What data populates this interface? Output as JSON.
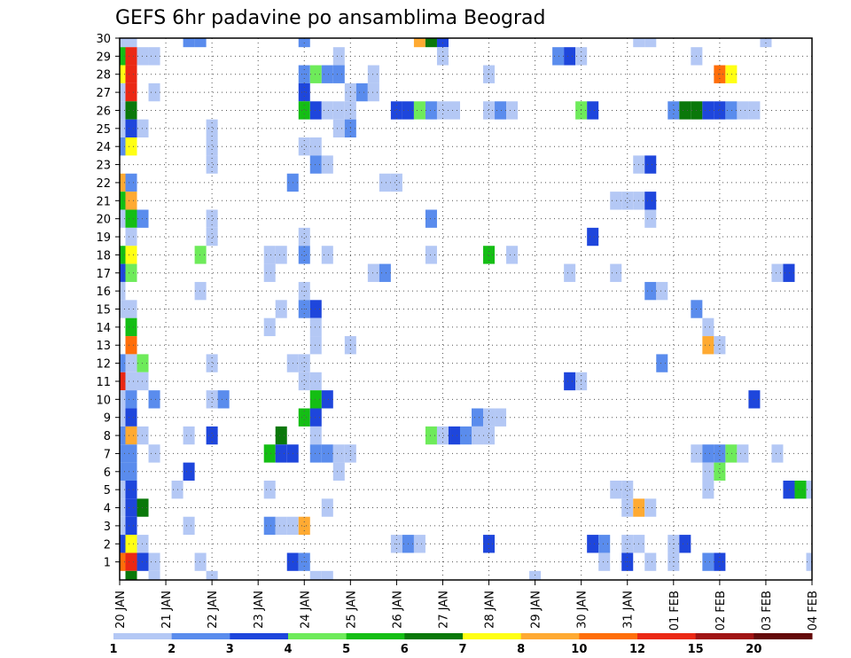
{
  "chart_data": {
    "type": "heatmap",
    "title": "GEFS 6hr padavine po ansamblima Beograd",
    "xlabel": "",
    "ylabel": "",
    "x_tick_labels": [
      "20 JAN",
      "21 JAN",
      "22 JAN",
      "23 JAN",
      "24 JAN",
      "25 JAN",
      "26 JAN",
      "27 JAN",
      "28 JAN",
      "29 JAN",
      "30 JAN",
      "31 JAN",
      "01 FEB",
      "02 FEB",
      "03 FEB",
      "04 FEB"
    ],
    "y_tick_labels": [
      "1",
      "2",
      "3",
      "4",
      "5",
      "6",
      "7",
      "8",
      "9",
      "10",
      "11",
      "12",
      "13",
      "14",
      "15",
      "16",
      "17",
      "18",
      "19",
      "20",
      "21",
      "22",
      "23",
      "24",
      "25",
      "26",
      "27",
      "28",
      "29",
      "30"
    ],
    "time_steps_per_day": 4,
    "x_range_steps": [
      0,
      60
    ],
    "y_range_members": [
      0,
      30
    ],
    "grid": "dotted",
    "colorbar": {
      "placement": "bottom",
      "boundary_labels": [
        "1",
        "2",
        "3",
        "4",
        "5",
        "6",
        "7",
        "8",
        "10",
        "12",
        "15",
        "20"
      ],
      "colors": [
        "#b4c8f5",
        "#5a8ced",
        "#1e46dc",
        "#6eeb5a",
        "#14be14",
        "#0a780a",
        "#ffff14",
        "#ffaa32",
        "#ff6e0a",
        "#eb2814",
        "#a01414",
        "#640a0a"
      ]
    },
    "cells_legend": "[member, step, colorIndex] where step counts 6-hour intervals from 20 JAN 00 and colorIndex refers to colorbar.colors",
    "cells": [
      [
        30,
        0,
        0
      ],
      [
        30,
        1,
        0
      ],
      [
        30,
        6,
        1
      ],
      [
        30,
        7,
        1
      ],
      [
        30,
        16,
        1
      ],
      [
        30,
        26,
        7
      ],
      [
        30,
        27,
        5
      ],
      [
        30,
        28,
        2
      ],
      [
        30,
        45,
        0
      ],
      [
        30,
        46,
        0
      ],
      [
        30,
        56,
        0
      ],
      [
        29,
        0,
        4
      ],
      [
        29,
        1,
        9
      ],
      [
        29,
        2,
        0
      ],
      [
        29,
        3,
        0
      ],
      [
        29,
        19,
        0
      ],
      [
        29,
        28,
        0
      ],
      [
        29,
        38,
        1
      ],
      [
        29,
        39,
        2
      ],
      [
        29,
        40,
        0
      ],
      [
        29,
        50,
        0
      ],
      [
        28,
        0,
        6
      ],
      [
        28,
        1,
        9
      ],
      [
        28,
        16,
        1
      ],
      [
        28,
        17,
        3
      ],
      [
        28,
        18,
        1
      ],
      [
        28,
        19,
        1
      ],
      [
        28,
        22,
        0
      ],
      [
        28,
        32,
        0
      ],
      [
        28,
        52,
        8
      ],
      [
        28,
        53,
        6
      ],
      [
        27,
        0,
        0
      ],
      [
        27,
        1,
        9
      ],
      [
        27,
        3,
        0
      ],
      [
        27,
        16,
        2
      ],
      [
        27,
        20,
        0
      ],
      [
        27,
        21,
        1
      ],
      [
        27,
        22,
        0
      ],
      [
        26,
        0,
        0
      ],
      [
        26,
        1,
        5
      ],
      [
        26,
        16,
        4
      ],
      [
        26,
        17,
        2
      ],
      [
        26,
        18,
        0
      ],
      [
        26,
        19,
        0
      ],
      [
        26,
        20,
        0
      ],
      [
        26,
        24,
        2
      ],
      [
        26,
        25,
        2
      ],
      [
        26,
        26,
        3
      ],
      [
        26,
        27,
        1
      ],
      [
        26,
        28,
        0
      ],
      [
        26,
        29,
        0
      ],
      [
        26,
        32,
        0
      ],
      [
        26,
        33,
        1
      ],
      [
        26,
        34,
        0
      ],
      [
        26,
        40,
        3
      ],
      [
        26,
        41,
        2
      ],
      [
        26,
        48,
        1
      ],
      [
        26,
        49,
        5
      ],
      [
        26,
        50,
        5
      ],
      [
        26,
        51,
        2
      ],
      [
        26,
        52,
        2
      ],
      [
        26,
        53,
        1
      ],
      [
        26,
        54,
        0
      ],
      [
        26,
        55,
        0
      ],
      [
        25,
        0,
        0
      ],
      [
        25,
        1,
        2
      ],
      [
        25,
        2,
        0
      ],
      [
        25,
        8,
        0
      ],
      [
        25,
        19,
        0
      ],
      [
        25,
        20,
        1
      ],
      [
        24,
        0,
        1
      ],
      [
        24,
        1,
        6
      ],
      [
        24,
        8,
        0
      ],
      [
        24,
        16,
        0
      ],
      [
        24,
        17,
        0
      ],
      [
        23,
        8,
        0
      ],
      [
        23,
        17,
        1
      ],
      [
        23,
        18,
        0
      ],
      [
        23,
        45,
        0
      ],
      [
        23,
        46,
        2
      ],
      [
        22,
        0,
        7
      ],
      [
        22,
        1,
        1
      ],
      [
        22,
        15,
        1
      ],
      [
        22,
        23,
        0
      ],
      [
        22,
        24,
        0
      ],
      [
        21,
        0,
        4
      ],
      [
        21,
        1,
        7
      ],
      [
        21,
        43,
        0
      ],
      [
        21,
        44,
        0
      ],
      [
        21,
        45,
        0
      ],
      [
        21,
        46,
        2
      ],
      [
        20,
        0,
        0
      ],
      [
        20,
        1,
        4
      ],
      [
        20,
        2,
        1
      ],
      [
        20,
        8,
        0
      ],
      [
        20,
        27,
        1
      ],
      [
        20,
        46,
        0
      ],
      [
        19,
        1,
        0
      ],
      [
        19,
        8,
        0
      ],
      [
        19,
        16,
        0
      ],
      [
        19,
        41,
        2
      ],
      [
        18,
        0,
        4
      ],
      [
        18,
        1,
        6
      ],
      [
        18,
        7,
        3
      ],
      [
        18,
        13,
        0
      ],
      [
        18,
        14,
        0
      ],
      [
        18,
        16,
        1
      ],
      [
        18,
        18,
        0
      ],
      [
        18,
        27,
        0
      ],
      [
        18,
        32,
        4
      ],
      [
        18,
        34,
        0
      ],
      [
        17,
        0,
        2
      ],
      [
        17,
        1,
        3
      ],
      [
        17,
        13,
        0
      ],
      [
        17,
        22,
        0
      ],
      [
        17,
        23,
        1
      ],
      [
        17,
        39,
        0
      ],
      [
        17,
        43,
        0
      ],
      [
        17,
        57,
        0
      ],
      [
        17,
        58,
        2
      ],
      [
        16,
        0,
        0
      ],
      [
        16,
        7,
        0
      ],
      [
        16,
        16,
        0
      ],
      [
        16,
        46,
        1
      ],
      [
        16,
        47,
        0
      ],
      [
        15,
        0,
        0
      ],
      [
        15,
        1,
        0
      ],
      [
        15,
        14,
        0
      ],
      [
        15,
        16,
        1
      ],
      [
        15,
        17,
        2
      ],
      [
        15,
        50,
        1
      ],
      [
        14,
        1,
        4
      ],
      [
        14,
        13,
        0
      ],
      [
        14,
        17,
        0
      ],
      [
        14,
        51,
        0
      ],
      [
        13,
        1,
        8
      ],
      [
        13,
        17,
        0
      ],
      [
        13,
        20,
        0
      ],
      [
        13,
        51,
        7
      ],
      [
        13,
        52,
        0
      ],
      [
        12,
        0,
        1
      ],
      [
        12,
        1,
        0
      ],
      [
        12,
        2,
        3
      ],
      [
        12,
        8,
        0
      ],
      [
        12,
        15,
        0
      ],
      [
        12,
        16,
        0
      ],
      [
        12,
        47,
        1
      ],
      [
        11,
        0,
        9
      ],
      [
        11,
        1,
        0
      ],
      [
        11,
        2,
        0
      ],
      [
        11,
        16,
        0
      ],
      [
        11,
        17,
        0
      ],
      [
        11,
        39,
        2
      ],
      [
        11,
        40,
        0
      ],
      [
        10,
        0,
        0
      ],
      [
        10,
        1,
        1
      ],
      [
        10,
        3,
        1
      ],
      [
        10,
        8,
        0
      ],
      [
        10,
        9,
        1
      ],
      [
        10,
        17,
        4
      ],
      [
        10,
        18,
        2
      ],
      [
        10,
        55,
        2
      ],
      [
        9,
        0,
        0
      ],
      [
        9,
        1,
        2
      ],
      [
        9,
        16,
        4
      ],
      [
        9,
        17,
        2
      ],
      [
        9,
        31,
        1
      ],
      [
        9,
        32,
        0
      ],
      [
        9,
        33,
        0
      ],
      [
        8,
        0,
        1
      ],
      [
        8,
        1,
        7
      ],
      [
        8,
        2,
        0
      ],
      [
        8,
        6,
        0
      ],
      [
        8,
        8,
        2
      ],
      [
        8,
        14,
        5
      ],
      [
        8,
        17,
        0
      ],
      [
        8,
        27,
        3
      ],
      [
        8,
        28,
        0
      ],
      [
        8,
        29,
        2
      ],
      [
        8,
        30,
        1
      ],
      [
        8,
        31,
        0
      ],
      [
        8,
        32,
        0
      ],
      [
        7,
        0,
        1
      ],
      [
        7,
        1,
        1
      ],
      [
        7,
        3,
        0
      ],
      [
        7,
        13,
        4
      ],
      [
        7,
        14,
        2
      ],
      [
        7,
        15,
        2
      ],
      [
        7,
        17,
        1
      ],
      [
        7,
        18,
        1
      ],
      [
        7,
        19,
        0
      ],
      [
        7,
        20,
        0
      ],
      [
        7,
        50,
        0
      ],
      [
        7,
        51,
        1
      ],
      [
        7,
        52,
        1
      ],
      [
        7,
        53,
        3
      ],
      [
        7,
        54,
        0
      ],
      [
        7,
        57,
        0
      ],
      [
        6,
        0,
        1
      ],
      [
        6,
        1,
        1
      ],
      [
        6,
        6,
        2
      ],
      [
        6,
        19,
        0
      ],
      [
        6,
        51,
        0
      ],
      [
        6,
        52,
        3
      ],
      [
        5,
        0,
        0
      ],
      [
        5,
        1,
        2
      ],
      [
        5,
        5,
        0
      ],
      [
        5,
        13,
        0
      ],
      [
        5,
        43,
        0
      ],
      [
        5,
        44,
        0
      ],
      [
        5,
        51,
        0
      ],
      [
        5,
        58,
        2
      ],
      [
        5,
        59,
        4
      ],
      [
        5,
        60,
        0
      ],
      [
        4,
        0,
        0
      ],
      [
        4,
        1,
        2
      ],
      [
        4,
        2,
        5
      ],
      [
        4,
        18,
        0
      ],
      [
        4,
        44,
        0
      ],
      [
        4,
        45,
        7
      ],
      [
        4,
        46,
        0
      ],
      [
        3,
        0,
        0
      ],
      [
        3,
        1,
        2
      ],
      [
        3,
        6,
        0
      ],
      [
        3,
        13,
        1
      ],
      [
        3,
        14,
        0
      ],
      [
        3,
        15,
        0
      ],
      [
        3,
        16,
        7
      ],
      [
        2,
        0,
        2
      ],
      [
        2,
        1,
        6
      ],
      [
        2,
        2,
        0
      ],
      [
        2,
        24,
        0
      ],
      [
        2,
        25,
        1
      ],
      [
        2,
        26,
        0
      ],
      [
        2,
        32,
        2
      ],
      [
        2,
        41,
        2
      ],
      [
        2,
        42,
        1
      ],
      [
        2,
        44,
        0
      ],
      [
        2,
        45,
        0
      ],
      [
        2,
        48,
        0
      ],
      [
        2,
        49,
        2
      ],
      [
        1,
        0,
        8
      ],
      [
        1,
        1,
        9
      ],
      [
        1,
        2,
        2
      ],
      [
        1,
        3,
        0
      ],
      [
        1,
        7,
        0
      ],
      [
        1,
        15,
        2
      ],
      [
        1,
        16,
        1
      ],
      [
        1,
        42,
        0
      ],
      [
        1,
        44,
        2
      ],
      [
        1,
        46,
        0
      ],
      [
        1,
        48,
        0
      ],
      [
        1,
        51,
        1
      ],
      [
        1,
        52,
        2
      ],
      [
        1,
        60,
        0
      ],
      [
        0,
        1,
        5
      ],
      [
        0,
        3,
        0
      ],
      [
        0,
        8,
        0
      ],
      [
        0,
        17,
        0
      ],
      [
        0,
        18,
        0
      ],
      [
        0,
        36,
        0
      ]
    ]
  }
}
